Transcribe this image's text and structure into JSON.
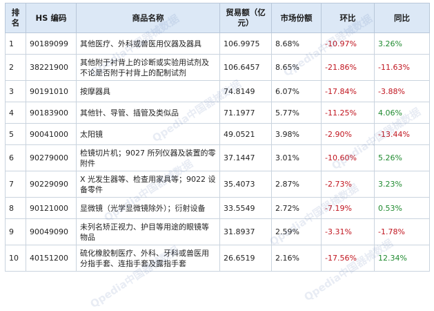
{
  "headers": {
    "rank": "排名",
    "code": "HS 编码",
    "name": "商品名称",
    "value": "贸易额（亿元）",
    "share": "市场份额",
    "mom": "环比",
    "yoy": "同比"
  },
  "rows": [
    {
      "rank": "1",
      "code": "90189099",
      "name": "其他医疗、外科或兽医用仪器及器具",
      "value": "106.9975",
      "share": "8.68%",
      "mom": "-10.97%",
      "yoy": "3.26%"
    },
    {
      "rank": "2",
      "code": "38221900",
      "name": "其他附于衬背上的诊断或实验用试剂及不论是否附于衬背上的配制试剂",
      "value": "106.6457",
      "share": "8.65%",
      "mom": "-21.86%",
      "yoy": "-11.63%"
    },
    {
      "rank": "3",
      "code": "90191010",
      "name": "按摩器具",
      "value": "74.8149",
      "share": "6.07%",
      "mom": "-17.84%",
      "yoy": "-3.88%"
    },
    {
      "rank": "4",
      "code": "90183900",
      "name": "其他针、导管、插管及类似品",
      "value": "71.1977",
      "share": "5.77%",
      "mom": "-11.25%",
      "yoy": "4.06%"
    },
    {
      "rank": "5",
      "code": "90041000",
      "name": "太阳镜",
      "value": "49.0521",
      "share": "3.98%",
      "mom": "-2.90%",
      "yoy": "-13.44%"
    },
    {
      "rank": "6",
      "code": "90279000",
      "name": "检镜切片机；9027 所列仪器及装置的零附件",
      "value": "37.1447",
      "share": "3.01%",
      "mom": "-10.60%",
      "yoy": "5.26%"
    },
    {
      "rank": "7",
      "code": "90229090",
      "name": "X 光发生器等、检查用家具等；9022 设备零件",
      "value": "35.4073",
      "share": "2.87%",
      "mom": "-2.73%",
      "yoy": "3.23%"
    },
    {
      "rank": "8",
      "code": "90121000",
      "name": "显微镜（光学显微镜除外）；衍射设备",
      "value": "33.5549",
      "share": "2.72%",
      "mom": "-7.19%",
      "yoy": "0.53%"
    },
    {
      "rank": "9",
      "code": "90049090",
      "name": "未列名矫正视力、护目等用途的眼镜等物品",
      "value": "31.8937",
      "share": "2.59%",
      "mom": "-3.31%",
      "yoy": "-1.78%"
    },
    {
      "rank": "10",
      "code": "40151200",
      "name": "硫化橡胶制医疗、外科、牙科或兽医用分指手套、连指手套及露指手套",
      "value": "26.6519",
      "share": "2.16%",
      "mom": "-17.56%",
      "yoy": "12.34%"
    }
  ],
  "watermark": "Qpedia中国器械数据",
  "colors": {
    "header_bg": "#dce8f6",
    "negative": "#c0141e",
    "positive": "#1f8a2f"
  }
}
